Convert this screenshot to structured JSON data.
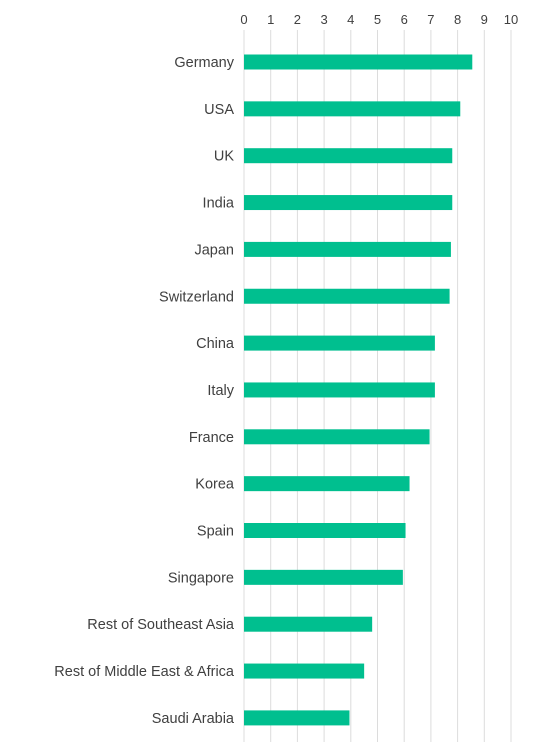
{
  "chart_data": {
    "type": "bar",
    "orientation": "horizontal",
    "categories": [
      "Germany",
      "USA",
      "UK",
      "India",
      "Japan",
      "Switzerland",
      "China",
      "Italy",
      "France",
      "Korea",
      "Spain",
      "Singapore",
      "Rest of Southeast Asia",
      "Rest of Middle East & Africa",
      "Saudi Arabia"
    ],
    "values": [
      8.55,
      8.1,
      7.8,
      7.8,
      7.75,
      7.7,
      7.15,
      7.15,
      6.95,
      6.2,
      6.05,
      5.95,
      4.8,
      4.5,
      3.95
    ],
    "xlim": [
      0,
      10
    ],
    "x_ticks": [
      "0",
      "1",
      "2",
      "3",
      "4",
      "5",
      "6",
      "7",
      "8",
      "9",
      "10"
    ],
    "x_axis_position": "top",
    "grid": true,
    "legend": "none",
    "title": "",
    "xlabel": "",
    "ylabel": "",
    "colors": {
      "bar": "#00BF8F",
      "grid": "#dcdcdc",
      "text": "#404040"
    }
  }
}
